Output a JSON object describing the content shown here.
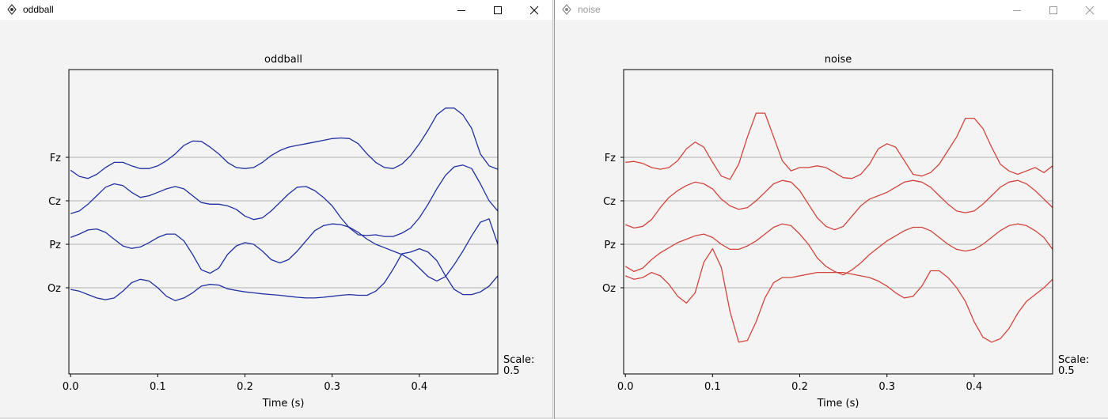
{
  "windows": [
    {
      "title": "oddball",
      "active": true,
      "chart_data": {
        "type": "line",
        "title": "oddball",
        "xlabel": "Time (s)",
        "ylabel": "",
        "xlim": [
          -0.002,
          0.49
        ],
        "x_ticks": [
          0.0,
          0.1,
          0.2,
          0.3,
          0.4
        ],
        "x_tick_labels": [
          "0.0",
          "0.1",
          "0.2",
          "0.3",
          "0.4"
        ],
        "y_tick_labels": [
          "Fz",
          "Cz",
          "Pz",
          "Oz"
        ],
        "scale_label": "Scale:",
        "scale_value": "0.5",
        "line_color": "#1f2fa0",
        "grid_color": "#b0b0b0",
        "series": [
          {
            "x": [
              0.0,
              0.01,
              0.02,
              0.03,
              0.04,
              0.05,
              0.06,
              0.07,
              0.08,
              0.09,
              0.1,
              0.11,
              0.12,
              0.13,
              0.14,
              0.15,
              0.16,
              0.17,
              0.18,
              0.19,
              0.2,
              0.21,
              0.22,
              0.23,
              0.24,
              0.25,
              0.26,
              0.27,
              0.28,
              0.29,
              0.3,
              0.31,
              0.32,
              0.33,
              0.34,
              0.35,
              0.36,
              0.37,
              0.38,
              0.39,
              0.4,
              0.41,
              0.42,
              0.43,
              0.44,
              0.45,
              0.46,
              0.47,
              0.48,
              0.49
            ],
            "y": [
              -0.38,
              -0.56,
              -0.62,
              -0.5,
              -0.3,
              -0.15,
              -0.15,
              -0.25,
              -0.33,
              -0.33,
              -0.25,
              -0.1,
              0.1,
              0.35,
              0.48,
              0.47,
              0.3,
              0.1,
              -0.15,
              -0.3,
              -0.33,
              -0.3,
              -0.15,
              0.05,
              0.2,
              0.3,
              0.35,
              0.4,
              0.45,
              0.5,
              0.55,
              0.57,
              0.55,
              0.4,
              0.1,
              -0.15,
              -0.3,
              -0.33,
              -0.2,
              0.05,
              0.4,
              0.8,
              1.25,
              1.45,
              1.45,
              1.25,
              0.85,
              0.1,
              -0.25,
              -0.35
            ]
          },
          {
            "x": [
              0.0,
              0.01,
              0.02,
              0.03,
              0.04,
              0.05,
              0.06,
              0.07,
              0.08,
              0.09,
              0.1,
              0.11,
              0.12,
              0.13,
              0.14,
              0.15,
              0.16,
              0.17,
              0.18,
              0.19,
              0.2,
              0.21,
              0.22,
              0.23,
              0.24,
              0.25,
              0.26,
              0.27,
              0.28,
              0.29,
              0.3,
              0.31,
              0.32,
              0.33,
              0.34,
              0.35,
              0.36,
              0.37,
              0.38,
              0.39,
              0.4,
              0.41,
              0.42,
              0.43,
              0.44,
              0.45,
              0.46,
              0.47,
              0.48,
              0.49
            ],
            "y": [
              -0.38,
              -0.3,
              -0.1,
              0.15,
              0.4,
              0.5,
              0.45,
              0.25,
              0.1,
              0.15,
              0.25,
              0.35,
              0.42,
              0.35,
              0.15,
              -0.05,
              -0.1,
              -0.1,
              -0.15,
              -0.25,
              -0.45,
              -0.55,
              -0.5,
              -0.3,
              -0.05,
              0.2,
              0.4,
              0.42,
              0.3,
              0.1,
              -0.15,
              -0.5,
              -0.8,
              -1.0,
              -1.02,
              -1.0,
              -1.05,
              -1.05,
              -0.95,
              -0.8,
              -0.5,
              -0.1,
              0.35,
              0.75,
              1.0,
              1.05,
              0.95,
              0.5,
              0.0,
              -0.3
            ]
          },
          {
            "x": [
              0.0,
              0.01,
              0.02,
              0.03,
              0.04,
              0.05,
              0.06,
              0.07,
              0.08,
              0.09,
              0.1,
              0.11,
              0.12,
              0.13,
              0.14,
              0.15,
              0.16,
              0.17,
              0.18,
              0.19,
              0.2,
              0.21,
              0.22,
              0.23,
              0.24,
              0.25,
              0.26,
              0.27,
              0.28,
              0.29,
              0.3,
              0.31,
              0.32,
              0.33,
              0.34,
              0.35,
              0.36,
              0.37,
              0.38,
              0.39,
              0.4,
              0.41,
              0.42,
              0.43,
              0.44,
              0.45,
              0.46,
              0.47,
              0.48,
              0.49
            ],
            "y": [
              0.2,
              0.3,
              0.42,
              0.45,
              0.35,
              0.15,
              -0.05,
              -0.12,
              -0.08,
              0.05,
              0.2,
              0.3,
              0.3,
              0.1,
              -0.3,
              -0.75,
              -0.85,
              -0.7,
              -0.3,
              -0.05,
              0.05,
              0.0,
              -0.2,
              -0.45,
              -0.55,
              -0.45,
              -0.2,
              0.1,
              0.4,
              0.55,
              0.6,
              0.58,
              0.5,
              0.35,
              0.15,
              0.0,
              -0.1,
              -0.2,
              -0.3,
              -0.45,
              -0.7,
              -0.95,
              -1.08,
              -0.95,
              -0.6,
              -0.2,
              0.25,
              0.65,
              0.75,
              0.0
            ]
          },
          {
            "x": [
              0.0,
              0.01,
              0.02,
              0.03,
              0.04,
              0.05,
              0.06,
              0.07,
              0.08,
              0.09,
              0.1,
              0.11,
              0.12,
              0.13,
              0.14,
              0.15,
              0.16,
              0.17,
              0.18,
              0.19,
              0.2,
              0.21,
              0.22,
              0.23,
              0.24,
              0.25,
              0.26,
              0.27,
              0.28,
              0.29,
              0.3,
              0.31,
              0.32,
              0.33,
              0.34,
              0.35,
              0.36,
              0.37,
              0.38,
              0.39,
              0.4,
              0.41,
              0.42,
              0.43,
              0.44,
              0.45,
              0.46,
              0.47,
              0.48,
              0.49
            ],
            "y": [
              -0.05,
              -0.1,
              -0.2,
              -0.3,
              -0.35,
              -0.3,
              -0.1,
              0.15,
              0.25,
              0.2,
              0.0,
              -0.25,
              -0.38,
              -0.3,
              -0.15,
              0.05,
              0.1,
              0.08,
              -0.03,
              -0.08,
              -0.12,
              -0.15,
              -0.18,
              -0.2,
              -0.22,
              -0.25,
              -0.28,
              -0.3,
              -0.3,
              -0.28,
              -0.25,
              -0.22,
              -0.2,
              -0.22,
              -0.22,
              -0.1,
              0.15,
              0.55,
              1.0,
              1.05,
              1.15,
              1.05,
              0.8,
              0.35,
              -0.05,
              -0.2,
              -0.2,
              -0.12,
              0.05,
              0.35
            ]
          }
        ]
      }
    },
    {
      "title": "noise",
      "active": false,
      "chart_data": {
        "type": "line",
        "title": "noise",
        "xlabel": "Time (s)",
        "ylabel": "",
        "xlim": [
          -0.002,
          0.49
        ],
        "x_ticks": [
          0.0,
          0.1,
          0.2,
          0.3,
          0.4
        ],
        "x_tick_labels": [
          "0.0",
          "0.1",
          "0.2",
          "0.3",
          "0.4"
        ],
        "y_tick_labels": [
          "Fz",
          "Cz",
          "Pz",
          "Oz"
        ],
        "scale_label": "Scale:",
        "scale_value": "0.5",
        "line_color": "#d0453c",
        "grid_color": "#b0b0b0",
        "series": [
          {
            "x": [
              0.0,
              0.01,
              0.02,
              0.03,
              0.04,
              0.05,
              0.06,
              0.07,
              0.08,
              0.09,
              0.1,
              0.11,
              0.12,
              0.13,
              0.14,
              0.15,
              0.16,
              0.17,
              0.18,
              0.19,
              0.2,
              0.21,
              0.22,
              0.23,
              0.24,
              0.25,
              0.26,
              0.27,
              0.28,
              0.29,
              0.3,
              0.31,
              0.32,
              0.33,
              0.34,
              0.35,
              0.36,
              0.37,
              0.38,
              0.39,
              0.4,
              0.41,
              0.42,
              0.43,
              0.44,
              0.45,
              0.46,
              0.47,
              0.48,
              0.49
            ],
            "y": [
              -0.15,
              -0.12,
              -0.18,
              -0.3,
              -0.35,
              -0.3,
              -0.1,
              0.25,
              0.45,
              0.3,
              -0.15,
              -0.55,
              -0.65,
              -0.2,
              0.6,
              1.3,
              1.3,
              0.6,
              -0.1,
              -0.4,
              -0.3,
              -0.3,
              -0.25,
              -0.3,
              -0.45,
              -0.6,
              -0.62,
              -0.5,
              -0.2,
              0.25,
              0.4,
              0.3,
              -0.1,
              -0.5,
              -0.55,
              -0.45,
              -0.2,
              0.2,
              0.6,
              1.15,
              1.15,
              0.85,
              0.3,
              -0.2,
              -0.4,
              -0.5,
              -0.4,
              -0.3,
              -0.45,
              -0.25
            ]
          },
          {
            "x": [
              0.0,
              0.01,
              0.02,
              0.03,
              0.04,
              0.05,
              0.06,
              0.07,
              0.08,
              0.09,
              0.1,
              0.11,
              0.12,
              0.13,
              0.14,
              0.15,
              0.16,
              0.17,
              0.18,
              0.19,
              0.2,
              0.21,
              0.22,
              0.23,
              0.24,
              0.25,
              0.26,
              0.27,
              0.28,
              0.29,
              0.3,
              0.31,
              0.32,
              0.33,
              0.34,
              0.35,
              0.36,
              0.37,
              0.38,
              0.39,
              0.4,
              0.41,
              0.42,
              0.43,
              0.44,
              0.45,
              0.46,
              0.47,
              0.48,
              0.49
            ],
            "y": [
              -0.7,
              -0.8,
              -0.75,
              -0.55,
              -0.2,
              0.1,
              0.3,
              0.45,
              0.55,
              0.5,
              0.35,
              0.05,
              -0.15,
              -0.25,
              -0.2,
              0.0,
              0.25,
              0.5,
              0.6,
              0.55,
              0.3,
              -0.1,
              -0.5,
              -0.75,
              -0.85,
              -0.75,
              -0.45,
              -0.15,
              0.05,
              0.15,
              0.25,
              0.4,
              0.55,
              0.6,
              0.55,
              0.4,
              0.15,
              -0.1,
              -0.3,
              -0.35,
              -0.3,
              -0.1,
              0.15,
              0.4,
              0.55,
              0.6,
              0.5,
              0.3,
              0.05,
              -0.2
            ]
          },
          {
            "x": [
              0.0,
              0.01,
              0.02,
              0.03,
              0.04,
              0.05,
              0.06,
              0.07,
              0.08,
              0.09,
              0.1,
              0.11,
              0.12,
              0.13,
              0.14,
              0.15,
              0.16,
              0.17,
              0.18,
              0.19,
              0.2,
              0.21,
              0.22,
              0.23,
              0.24,
              0.25,
              0.26,
              0.27,
              0.28,
              0.29,
              0.3,
              0.31,
              0.32,
              0.33,
              0.34,
              0.35,
              0.36,
              0.37,
              0.38,
              0.39,
              0.4,
              0.41,
              0.42,
              0.43,
              0.44,
              0.45,
              0.46,
              0.47,
              0.48,
              0.49
            ],
            "y": [
              -0.65,
              -0.8,
              -0.7,
              -0.45,
              -0.25,
              -0.1,
              0.05,
              0.15,
              0.25,
              0.3,
              0.2,
              0.0,
              -0.15,
              -0.15,
              -0.05,
              0.1,
              0.3,
              0.5,
              0.6,
              0.55,
              0.3,
              0.0,
              -0.4,
              -0.65,
              -0.8,
              -0.9,
              -0.75,
              -0.55,
              -0.3,
              -0.1,
              0.1,
              0.25,
              0.4,
              0.5,
              0.5,
              0.4,
              0.2,
              0.0,
              -0.15,
              -0.2,
              -0.15,
              0.0,
              0.2,
              0.4,
              0.55,
              0.6,
              0.55,
              0.4,
              0.2,
              -0.15
            ]
          },
          {
            "x": [
              0.0,
              0.01,
              0.02,
              0.03,
              0.04,
              0.05,
              0.06,
              0.07,
              0.08,
              0.09,
              0.1,
              0.11,
              0.12,
              0.13,
              0.14,
              0.15,
              0.16,
              0.17,
              0.18,
              0.19,
              0.2,
              0.21,
              0.22,
              0.23,
              0.24,
              0.25,
              0.26,
              0.27,
              0.28,
              0.29,
              0.3,
              0.31,
              0.32,
              0.33,
              0.34,
              0.35,
              0.36,
              0.37,
              0.38,
              0.39,
              0.4,
              0.41,
              0.42,
              0.43,
              0.44,
              0.45,
              0.46,
              0.47,
              0.48,
              0.49
            ],
            "y": [
              0.35,
              0.25,
              0.3,
              0.45,
              0.35,
              0.1,
              -0.25,
              -0.45,
              -0.15,
              0.75,
              1.15,
              0.6,
              -0.7,
              -1.6,
              -1.55,
              -1.0,
              -0.3,
              0.15,
              0.3,
              0.3,
              0.35,
              0.4,
              0.45,
              0.45,
              0.45,
              0.45,
              0.4,
              0.35,
              0.3,
              0.2,
              0.05,
              -0.15,
              -0.3,
              -0.25,
              0.05,
              0.5,
              0.5,
              0.3,
              0.0,
              -0.4,
              -1.0,
              -1.45,
              -1.6,
              -1.5,
              -1.2,
              -0.75,
              -0.4,
              -0.2,
              0.0,
              0.25
            ]
          }
        ]
      }
    }
  ]
}
